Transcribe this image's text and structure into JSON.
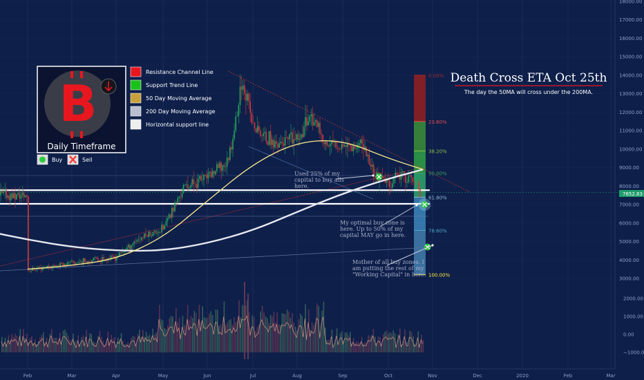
{
  "title": "Death Cross ETA Oct 25th",
  "subtitle": "The day the 50MA will cross under the 200MA.",
  "logo_panel": {
    "caption": "Daily Timeframe",
    "logo_glyph": "B",
    "icon": "arrow-down-icon"
  },
  "signals_legend": [
    {
      "label": "Buy",
      "color": "#2ecc40",
      "icon": "check-icon"
    },
    {
      "label": "Sell",
      "color": "#ff3b3b",
      "icon": "cross-icon"
    }
  ],
  "legend": [
    {
      "label": "Resistance Channel Line",
      "color": "#e8171f"
    },
    {
      "label": "Support Trend Line",
      "color": "#19c119"
    },
    {
      "label": "50 Day Moving Average",
      "color": "#c9a13a"
    },
    {
      "label": "200 Day Moving Average",
      "color": "#b9bfcf"
    },
    {
      "label": "Horizontal support line",
      "color": "#eeeeee"
    }
  ],
  "annotations": [
    {
      "id": "note-25",
      "lines": [
        "Used 25% of my",
        "capital to buy alls",
        "here."
      ]
    },
    {
      "id": "note-50",
      "lines": [
        "My optimal buy zone is",
        "here. Up to 50% of my",
        "capital MAY go in here."
      ]
    },
    {
      "id": "note-mother",
      "lines": [
        "Mother of all buy zones. I",
        "am putting the rest of my",
        "\"Working Capital\" in here."
      ]
    }
  ],
  "price_label": "7652.83",
  "chart_data": {
    "type": "candlestick",
    "x_ticks": [
      "Feb",
      "Mar",
      "Apr",
      "May",
      "Jun",
      "Jul",
      "Aug",
      "Sep",
      "Oct",
      "Nov",
      "Dec",
      "2020",
      "Feb",
      "Mar"
    ],
    "y_ticks": [
      3000,
      4000,
      5000,
      6000,
      7000,
      8000,
      9000,
      10000,
      11000,
      12000,
      13000,
      14000,
      15000,
      16000,
      17000,
      18000
    ],
    "y_tick_labels": [
      "3000.00",
      "4000.00",
      "5000.00",
      "6000.00",
      "7000.00",
      "8000.00",
      "9000.00",
      "10000.00",
      "11000.00",
      "12000.00",
      "13000.00",
      "14000.00",
      "15000.00",
      "16000.00",
      "17000.00",
      "18000.00"
    ],
    "volume_ticks": [
      2000,
      1000,
      0,
      -1000
    ],
    "volume_tick_labels": [
      "2000.00",
      "1000.00",
      "0.00",
      "−1000.00"
    ],
    "last_price": 7652.83,
    "horizontal_support": [
      7780,
      7040
    ],
    "price_path": [
      [
        "Feb",
        3450
      ],
      [
        "Mar",
        3850
      ],
      [
        "Apr",
        4150
      ],
      [
        "Apr 15",
        5100
      ],
      [
        "May",
        5700
      ],
      [
        "May 15",
        7900
      ],
      [
        "Jun",
        8500
      ],
      [
        "Jun 15",
        9300
      ],
      [
        "Jun 26",
        13800
      ],
      [
        "Jul",
        11200
      ],
      [
        "Jul 15",
        10300
      ],
      [
        "Aug",
        10500
      ],
      [
        "Aug 10",
        11900
      ],
      [
        "Aug 20",
        10200
      ],
      [
        "Sep",
        10300
      ],
      [
        "Sep 15",
        10200
      ],
      [
        "Sep 24",
        8500
      ],
      [
        "Oct",
        8200
      ],
      [
        "Oct 10",
        8600
      ],
      [
        "Oct 20",
        8200
      ],
      [
        "Oct 23",
        7500
      ]
    ],
    "ma50": [
      [
        "Feb",
        3500
      ],
      [
        "Mar",
        3700
      ],
      [
        "Apr",
        4050
      ],
      [
        "May",
        5200
      ],
      [
        "Jun",
        7200
      ],
      [
        "Jul",
        9200
      ],
      [
        "Aug",
        10400
      ],
      [
        "Sep",
        10500
      ],
      [
        "Oct",
        9500
      ],
      [
        "Oct 25",
        8900
      ]
    ],
    "ma200": [
      [
        "Jan",
        5600
      ],
      [
        "Feb",
        5100
      ],
      [
        "Mar",
        4700
      ],
      [
        "Apr",
        4500
      ],
      [
        "May",
        4500
      ],
      [
        "Jun",
        4900
      ],
      [
        "Jul",
        5600
      ],
      [
        "Aug",
        6600
      ],
      [
        "Sep",
        7600
      ],
      [
        "Oct",
        8400
      ],
      [
        "Oct 25",
        8900
      ]
    ],
    "fibonacci": [
      {
        "label": "0.00%",
        "price": 14000,
        "color": "#9a2a2a"
      },
      {
        "label": "23.60%",
        "price": 11500,
        "color": "#e74c4c"
      },
      {
        "label": "38.20%",
        "price": 9900,
        "color": "#8ac348"
      },
      {
        "label": "50.00%",
        "price": 8700,
        "color": "#3ca35a"
      },
      {
        "label": "61.80%",
        "price": 7400,
        "color": "#8fb9d0"
      },
      {
        "label": "78.60%",
        "price": 5600,
        "color": "#4da6c8"
      },
      {
        "label": "100.00%",
        "price": 3200,
        "color": "#ffeb3b"
      }
    ],
    "signals": [
      {
        "type": "buy",
        "date": "Sep 26",
        "price": 8500
      },
      {
        "type": "buy",
        "date": "Oct 26",
        "price": 7000
      },
      {
        "type": "buy",
        "date": "Oct 28",
        "price": 4700
      }
    ]
  }
}
